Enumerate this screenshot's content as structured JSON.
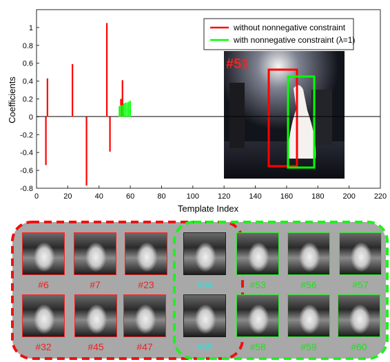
{
  "chart_data": {
    "type": "bar",
    "xlabel": "Template Index",
    "ylabel": "Coefficients",
    "xlim": [
      0,
      220
    ],
    "ylim": [
      -0.8,
      1.2
    ],
    "xticks": [
      "0",
      "20",
      "40",
      "60",
      "80",
      "100",
      "120",
      "140",
      "160",
      "180",
      "200",
      "220"
    ],
    "yticks": [
      "-0.8",
      "-0.6",
      "-0.4",
      "-0.2",
      "0",
      "0.2",
      "0.4",
      "0.6",
      "0.8",
      "1"
    ],
    "grid": false,
    "legend_position": "top-right",
    "series": [
      {
        "name": "without nonnegative constraint",
        "color": "#ff0000",
        "x": [
          6,
          7,
          23,
          32,
          45,
          47,
          54,
          55
        ],
        "values": [
          -0.54,
          0.43,
          0.59,
          -0.77,
          1.05,
          -0.39,
          0.2,
          0.41
        ]
      },
      {
        "name": "with nonnegative constraint (λ=1)",
        "color": "#00ff00",
        "x": [
          53,
          54,
          55,
          56,
          57,
          58,
          59,
          60
        ],
        "values": [
          0.12,
          0.13,
          0.13,
          0.15,
          0.16,
          0.16,
          0.17,
          0.18
        ]
      }
    ]
  },
  "inset": {
    "frame_label": "#51",
    "frame_label_color": "#ff2020",
    "box_colors": [
      "#ff0000",
      "#00ff00"
    ]
  },
  "panels": {
    "left": {
      "border_color": "#ee1111",
      "label_color": "#ee2222",
      "items": [
        {
          "label": "#6"
        },
        {
          "label": "#7"
        },
        {
          "label": "#23"
        },
        {
          "label": "#32"
        },
        {
          "label": "#45"
        },
        {
          "label": "#47"
        }
      ]
    },
    "middle": {
      "label_color": "#33dddd",
      "items": [
        {
          "label": "#54"
        },
        {
          "label": "#55"
        }
      ]
    },
    "right": {
      "border_color": "#22ee22",
      "label_color": "#22dd22",
      "items": [
        {
          "label": "#53"
        },
        {
          "label": "#56"
        },
        {
          "label": "#57"
        },
        {
          "label": "#58"
        },
        {
          "label": "#59"
        },
        {
          "label": "#60"
        }
      ]
    }
  }
}
